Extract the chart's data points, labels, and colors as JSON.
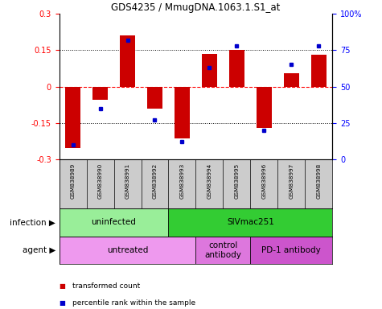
{
  "title": "GDS4235 / MmugDNA.1063.1.S1_at",
  "samples": [
    "GSM838989",
    "GSM838990",
    "GSM838991",
    "GSM838992",
    "GSM838993",
    "GSM838994",
    "GSM838995",
    "GSM838996",
    "GSM838997",
    "GSM838998"
  ],
  "transformed_count": [
    -0.255,
    -0.055,
    0.21,
    -0.09,
    -0.215,
    0.135,
    0.15,
    -0.17,
    0.055,
    0.13
  ],
  "percentile_rank": [
    10,
    35,
    82,
    27,
    12,
    63,
    78,
    20,
    65,
    78
  ],
  "ylim": [
    -0.3,
    0.3
  ],
  "y2lim": [
    0,
    100
  ],
  "yticks": [
    -0.3,
    -0.15,
    0,
    0.15,
    0.3
  ],
  "y2ticks": [
    0,
    25,
    50,
    75,
    100
  ],
  "y2ticklabels": [
    "0",
    "25",
    "50",
    "75",
    "100%"
  ],
  "hlines_dotted": [
    -0.15,
    0.15
  ],
  "hline_zero": 0,
  "bar_color": "#cc0000",
  "dot_color": "#0000cc",
  "infection_groups": [
    {
      "label": "uninfected",
      "start": 0,
      "end": 4,
      "color": "#99ee99"
    },
    {
      "label": "SIVmac251",
      "start": 4,
      "end": 10,
      "color": "#33cc33"
    }
  ],
  "agent_groups": [
    {
      "label": "untreated",
      "start": 0,
      "end": 5,
      "color": "#ee99ee"
    },
    {
      "label": "control\nantibody",
      "start": 5,
      "end": 7,
      "color": "#dd77dd"
    },
    {
      "label": "PD-1 antibody",
      "start": 7,
      "end": 10,
      "color": "#cc55cc"
    }
  ],
  "legend_items": [
    {
      "label": "transformed count",
      "color": "#cc0000"
    },
    {
      "label": "percentile rank within the sample",
      "color": "#0000cc"
    }
  ],
  "infection_label": "infection",
  "agent_label": "agent"
}
